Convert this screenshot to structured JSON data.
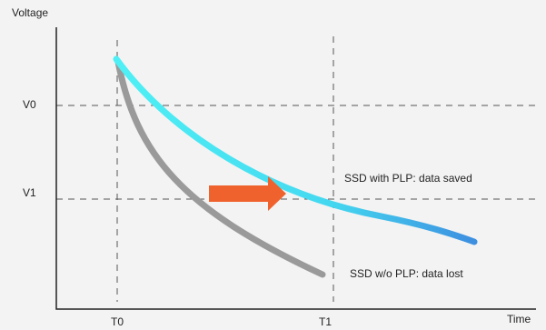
{
  "axes": {
    "y_label": "Voltage",
    "x_label": "Time"
  },
  "levels": [
    "V0",
    "V1"
  ],
  "times": [
    "T0",
    "T1"
  ],
  "curves": [
    "SSD with PLP: data saved",
    "SSD w/o PLP: data lost"
  ]
}
